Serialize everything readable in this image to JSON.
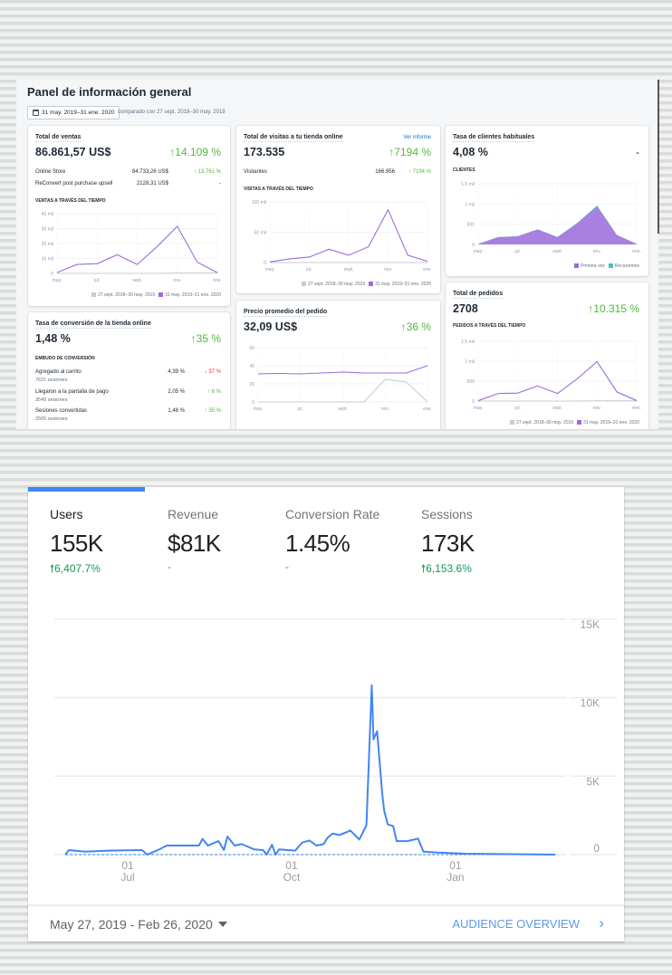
{
  "shopify": {
    "title": "Panel de información general",
    "date_range": "31 may. 2019–31 ene. 2020",
    "comparison": "comparado con 27 sept. 2018–30 may. 2019",
    "legend_prev": "27 sept. 2018–30 may. 2019",
    "legend_curr": "31 may. 2019–31 ene. 2020",
    "colors": {
      "current": "#9c6ade",
      "previous": "#c4cdd5",
      "recurring": "#47c1bf",
      "up": "#50b83c",
      "down": "#de3618"
    },
    "sales": {
      "title": "Total de ventas",
      "value": "86.861,57 US$",
      "change": "14.109 %",
      "rows": [
        {
          "label": "Online Store",
          "amount": "84.733,26 US$",
          "change": "13.761 %"
        },
        {
          "label": "ReConvert post purchase upsell",
          "amount": "2128,31 US$",
          "change": "-"
        }
      ],
      "section": "VENTAS A TRAVÉS DEL TIEMPO",
      "chart": {
        "type": "line",
        "ymax": 40,
        "yticks": [
          {
            "v": 0,
            "label": "0"
          },
          {
            "v": 10,
            "label": "10 mil"
          },
          {
            "v": 20,
            "label": "20 mil"
          },
          {
            "v": 30,
            "label": "30 mil"
          },
          {
            "v": 40,
            "label": "40 mil"
          }
        ],
        "xlabels": [
          "may.",
          "jul.",
          "sept.",
          "nov.",
          "ene."
        ],
        "series": [
          {
            "role": "previous",
            "values": [
              0,
              0,
              0,
              0,
              0,
              0,
              0.2,
              0.3,
              0.2
            ]
          },
          {
            "role": "current",
            "values": [
              0.5,
              6,
              6.5,
              12.5,
              6,
              18,
              31.5,
              7.5,
              0.5
            ]
          }
        ]
      }
    },
    "visits": {
      "title": "Total de visitas a tu tienda online",
      "link": "Ver informe",
      "value": "173.535",
      "change": "7194 %",
      "rows": [
        {
          "label": "Visitantes",
          "amount": "166.956",
          "change": "7194 %"
        }
      ],
      "section": "VISITAS A TRAVÉS DEL TIEMPO",
      "chart": {
        "type": "line",
        "ymax": 100,
        "yticks": [
          {
            "v": 0,
            "label": "0"
          },
          {
            "v": 50,
            "label": "50 mil"
          },
          {
            "v": 100,
            "label": "100 mil"
          }
        ],
        "xlabels": [
          "may.",
          "jul.",
          "sept.",
          "nov.",
          "ene."
        ],
        "series": [
          {
            "role": "previous",
            "values": [
              0,
              0,
              0,
              0,
              0,
              0,
              0,
              0,
              0
            ]
          },
          {
            "role": "current",
            "values": [
              1,
              6,
              9,
              22,
              12,
              26,
              87,
              12,
              2
            ]
          }
        ]
      }
    },
    "returning": {
      "title": "Tasa de clientes habituales",
      "value": "4,08 %",
      "change": "-",
      "section": "CLIENTES",
      "legend_first": "Primera vez",
      "legend_returning": "Recurrentes",
      "chart": {
        "type": "area",
        "ymax": 1500,
        "yticks": [
          {
            "v": 0,
            "label": "0"
          },
          {
            "v": 500,
            "label": "500"
          },
          {
            "v": 1000,
            "label": "1 mil"
          },
          {
            "v": 1500,
            "label": "1.5 mil"
          }
        ],
        "xlabels": [
          "may.",
          "jul.",
          "sept.",
          "nov.",
          "ene."
        ],
        "series": [
          {
            "role": "first",
            "values": [
              10,
              180,
              200,
              370,
              180,
              520,
              930,
              230,
              10
            ]
          },
          {
            "role": "recurring",
            "values": [
              0,
              2,
              3,
              5,
              5,
              12,
              30,
              6,
              0
            ]
          }
        ]
      }
    },
    "conversion": {
      "title": "Tasa de conversión de la tienda online",
      "value": "1,48 %",
      "change": "35 %",
      "section": "EMBUDO DE CONVERSIÓN",
      "rows": [
        {
          "label": "Agregado al carrito",
          "sessions": "7621 sesiones",
          "rate": "4,39 %",
          "change": "37 %",
          "dir": "down"
        },
        {
          "label": "Llegaron a la pantalla de pago",
          "sessions": "3549 sesiones",
          "rate": "2,05 %",
          "change": "6 %",
          "dir": "up"
        },
        {
          "label": "Sesiones convertidas",
          "sessions": "2565 sesiones",
          "rate": "1,48 %",
          "change": "35 %",
          "dir": "up"
        }
      ]
    },
    "aov": {
      "title": "Precio promedio del pedido",
      "value": "32,09 US$",
      "change": "36 %",
      "chart": {
        "type": "line",
        "ymax": 60,
        "yticks": [
          {
            "v": 0,
            "label": "0"
          },
          {
            "v": 20,
            "label": "20"
          },
          {
            "v": 40,
            "label": "40"
          },
          {
            "v": 60,
            "label": "60"
          }
        ],
        "xlabels": [
          "may.",
          "jul.",
          "sept.",
          "nov.",
          "ene."
        ],
        "series": [
          {
            "role": "previous",
            "values": [
              0,
              0,
              0,
              0,
              0,
              0,
              25,
              22,
              0
            ]
          },
          {
            "role": "current",
            "values": [
              31,
              31.5,
              31,
              32,
              33,
              32,
              32,
              32,
              40
            ]
          }
        ]
      }
    },
    "orders": {
      "title": "Total de pedidos",
      "value": "2708",
      "change": "10.315 %",
      "section": "PEDIDOS A TRAVÉS DEL TIEMPO",
      "chart": {
        "type": "line",
        "ymax": 1500,
        "yticks": [
          {
            "v": 0,
            "label": "0"
          },
          {
            "v": 500,
            "label": "500"
          },
          {
            "v": 1000,
            "label": "1 mil"
          },
          {
            "v": 1500,
            "label": "1.5 mil"
          }
        ],
        "xlabels": [
          "may.",
          "jul.",
          "sept.",
          "nov.",
          "ene."
        ],
        "series": [
          {
            "role": "previous",
            "values": [
              0,
              0,
              0,
              0,
              0,
              0,
              5,
              8,
              5
            ]
          },
          {
            "role": "current",
            "values": [
              10,
              190,
              200,
              380,
              190,
              560,
              990,
              230,
              10
            ]
          }
        ]
      }
    }
  },
  "ga": {
    "metrics": [
      {
        "label": "Users",
        "value": "155K",
        "change": "6,407.7%"
      },
      {
        "label": "Revenue",
        "value": "$81K",
        "change": "-"
      },
      {
        "label": "Conversion Rate",
        "value": "1.45%",
        "change": "-"
      },
      {
        "label": "Sessions",
        "value": "173K",
        "change": "6,153.6%"
      }
    ],
    "accent": "#4285f4",
    "date_range": "May 27, 2019 - Feb 26, 2020",
    "link": "AUDIENCE OVERVIEW",
    "chart_data": {
      "type": "line",
      "ylim": [
        0,
        15000
      ],
      "yticks": [
        {
          "v": 15000,
          "label": "15K"
        },
        {
          "v": 10000,
          "label": "10K"
        },
        {
          "v": 5000,
          "label": "5K"
        },
        {
          "v": 0,
          "label": "0"
        }
      ],
      "xticks": [
        {
          "date": "2019-07-01",
          "day": "01",
          "month": "Jul"
        },
        {
          "date": "2019-10-01",
          "day": "01",
          "month": "Oct"
        },
        {
          "date": "2020-01-01",
          "day": "01",
          "month": "Jan"
        }
      ],
      "grid": true,
      "series": [
        {
          "role": "current",
          "points": [
            [
              "2019-05-27",
              0
            ],
            [
              "2019-05-29",
              290
            ],
            [
              "2019-06-07",
              190
            ],
            [
              "2019-06-20",
              250
            ],
            [
              "2019-07-09",
              290
            ],
            [
              "2019-07-12",
              0
            ],
            [
              "2019-07-18",
              290
            ],
            [
              "2019-07-23",
              575
            ],
            [
              "2019-07-29",
              575
            ],
            [
              "2019-08-10",
              575
            ],
            [
              "2019-08-12",
              1000
            ],
            [
              "2019-08-15",
              575
            ],
            [
              "2019-08-21",
              860
            ],
            [
              "2019-08-24",
              290
            ],
            [
              "2019-08-26",
              1150
            ],
            [
              "2019-08-30",
              575
            ],
            [
              "2019-09-03",
              670
            ],
            [
              "2019-09-10",
              330
            ],
            [
              "2019-09-15",
              290
            ],
            [
              "2019-09-17",
              0
            ],
            [
              "2019-09-20",
              630
            ],
            [
              "2019-09-22",
              0
            ],
            [
              "2019-09-24",
              330
            ],
            [
              "2019-10-03",
              250
            ],
            [
              "2019-10-07",
              770
            ],
            [
              "2019-10-11",
              900
            ],
            [
              "2019-10-15",
              575
            ],
            [
              "2019-10-19",
              670
            ],
            [
              "2019-10-21",
              1050
            ],
            [
              "2019-10-24",
              1340
            ],
            [
              "2019-10-28",
              1250
            ],
            [
              "2019-11-03",
              1530
            ],
            [
              "2019-11-08",
              960
            ],
            [
              "2019-11-12",
              1860
            ],
            [
              "2019-11-15",
              10790
            ],
            [
              "2019-11-16",
              7340
            ],
            [
              "2019-11-18",
              7860
            ],
            [
              "2019-11-21",
              3740
            ],
            [
              "2019-11-22",
              2780
            ],
            [
              "2019-11-24",
              1920
            ],
            [
              "2019-11-27",
              1820
            ],
            [
              "2019-11-29",
              860
            ],
            [
              "2019-12-05",
              860
            ],
            [
              "2019-12-11",
              1020
            ],
            [
              "2019-12-14",
              190
            ],
            [
              "2019-12-22",
              130
            ],
            [
              "2020-01-06",
              60
            ],
            [
              "2020-02-07",
              20
            ],
            [
              "2020-02-26",
              0
            ]
          ]
        },
        {
          "role": "previous",
          "points": [
            [
              "2019-05-27",
              0
            ],
            [
              "2020-02-26",
              0
            ]
          ]
        }
      ]
    }
  }
}
